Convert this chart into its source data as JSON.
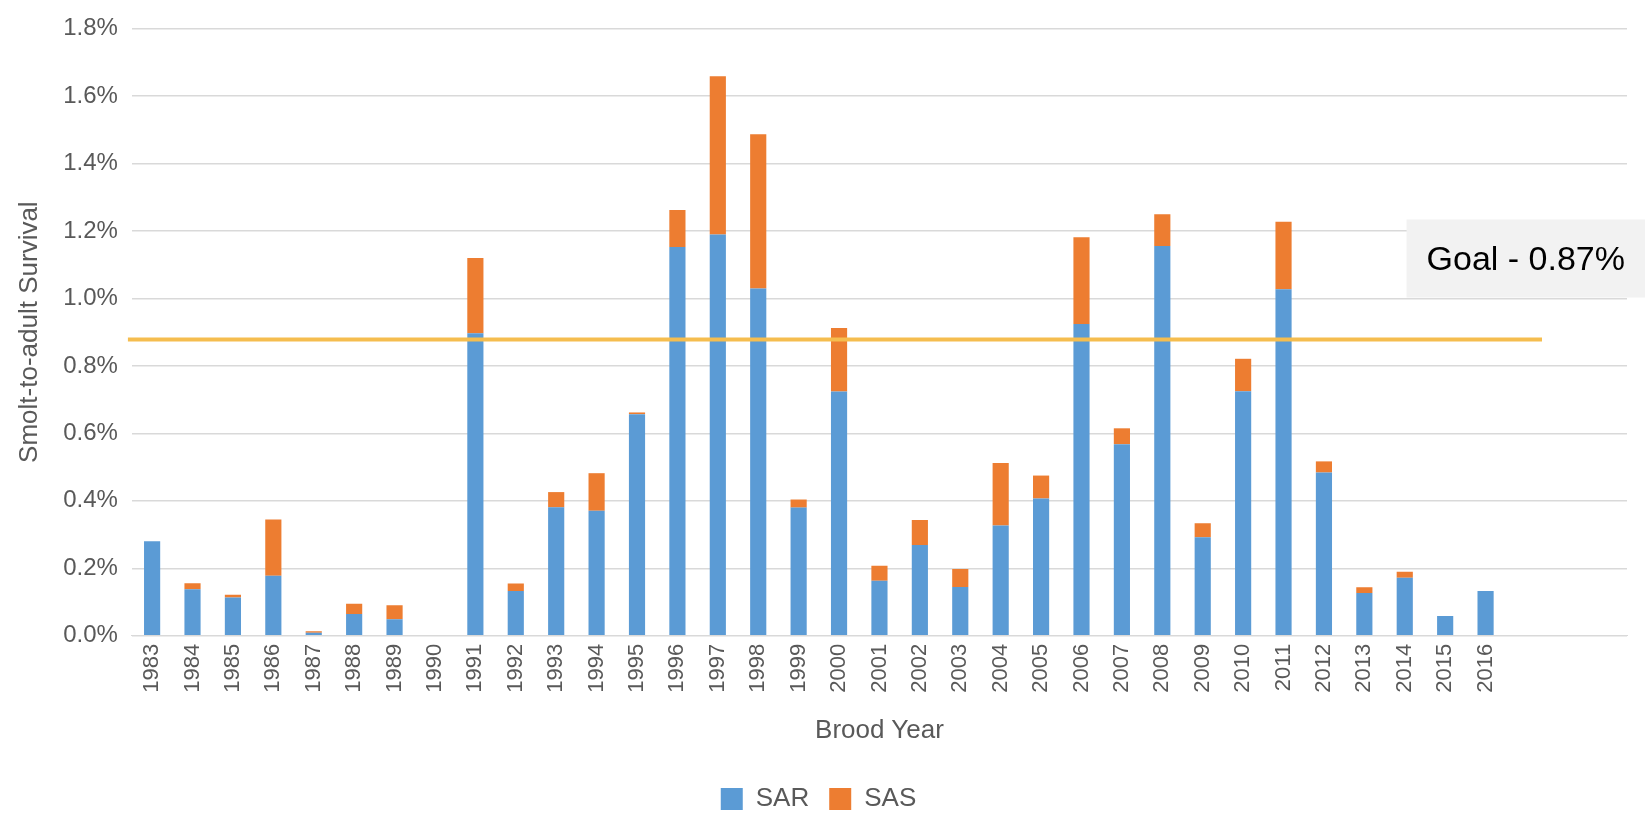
{
  "chart_data": {
    "type": "bar",
    "stacked": true,
    "xlabel": "Brood Year",
    "ylabel": "Smolt-to-adult Survival",
    "categories": [
      "1983",
      "1984",
      "1985",
      "1986",
      "1987",
      "1988",
      "1989",
      "1990",
      "1991",
      "1992",
      "1993",
      "1994",
      "1995",
      "1996",
      "1997",
      "1998",
      "1999",
      "2000",
      "2001",
      "2002",
      "2003",
      "2004",
      "2005",
      "2006",
      "2007",
      "2008",
      "2009",
      "2010",
      "2011",
      "2012",
      "2013",
      "2014",
      "2015",
      "2016",
      null,
      null,
      null
    ],
    "series": [
      {
        "name": "SAR",
        "color": "#5b9bd5",
        "values": [
          0.28,
          0.138,
          0.114,
          0.178,
          0.009,
          0.065,
          0.049,
          null,
          0.897,
          0.133,
          0.381,
          0.371,
          0.657,
          1.152,
          1.189,
          1.029,
          0.38,
          0.724,
          0.163,
          0.269,
          0.145,
          0.327,
          0.407,
          0.924,
          0.568,
          1.155,
          0.292,
          0.725,
          1.027,
          0.484,
          0.127,
          0.172,
          0.059,
          0.133,
          null,
          null,
          null
        ]
      },
      {
        "name": "SAS",
        "color": "#ed7d31",
        "values": [
          0,
          0.018,
          0.008,
          0.167,
          0.005,
          0.03,
          0.042,
          0,
          0.223,
          0.022,
          0.045,
          0.111,
          0.005,
          0.11,
          0.469,
          0.457,
          0.024,
          0.188,
          0.045,
          0.074,
          0.053,
          0.185,
          0.068,
          0.257,
          0.047,
          0.094,
          0.042,
          0.096,
          0.2,
          0.033,
          0.017,
          0.018,
          0,
          0,
          null,
          null,
          null
        ]
      }
    ],
    "ylim": [
      0,
      1.8
    ],
    "yticks": [
      {
        "value": 0,
        "label": "0.0%"
      },
      {
        "value": 0.2,
        "label": "0.2%"
      },
      {
        "value": 0.4,
        "label": "0.4%"
      },
      {
        "value": 0.6,
        "label": "0.6%"
      },
      {
        "value": 0.8,
        "label": "0.8%"
      },
      {
        "value": 1.0,
        "label": "1.0%"
      },
      {
        "value": 1.2,
        "label": "1.2%"
      },
      {
        "value": 1.4,
        "label": "1.4%"
      },
      {
        "value": 1.6,
        "label": "1.6%"
      },
      {
        "value": 1.8,
        "label": "1.8%"
      }
    ],
    "ref_lines": [
      {
        "axis": "y",
        "value": 0.878,
        "label": "Goal - 0.87%",
        "color": "#f5bd4f"
      }
    ],
    "grid": "y",
    "legend": "bottom"
  }
}
